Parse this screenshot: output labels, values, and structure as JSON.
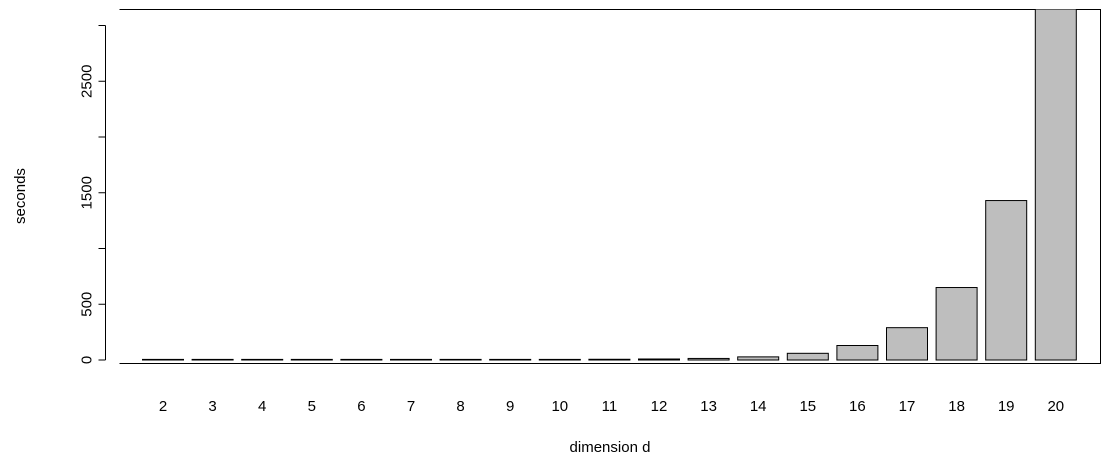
{
  "chart_data": {
    "type": "bar",
    "title": "",
    "xlabel": "dimension d",
    "ylabel": "seconds",
    "categories": [
      "2",
      "3",
      "4",
      "5",
      "6",
      "7",
      "8",
      "9",
      "10",
      "11",
      "12",
      "13",
      "14",
      "15",
      "16",
      "17",
      "18",
      "19",
      "20"
    ],
    "values": [
      0.1,
      0.2,
      0.3,
      0.5,
      0.8,
      1.3,
      2,
      3,
      4.5,
      6.5,
      9,
      14,
      28,
      60,
      130,
      290,
      650,
      1430,
      3170
    ],
    "yticks": [
      0,
      500,
      1500,
      2500
    ],
    "ytick_labels": [
      "0",
      "500",
      "1500",
      "2500"
    ],
    "ylim": [
      0,
      3200
    ],
    "grid": false,
    "legend": "none",
    "bar_fill": "#bebebe",
    "bar_stroke": "#000000"
  }
}
